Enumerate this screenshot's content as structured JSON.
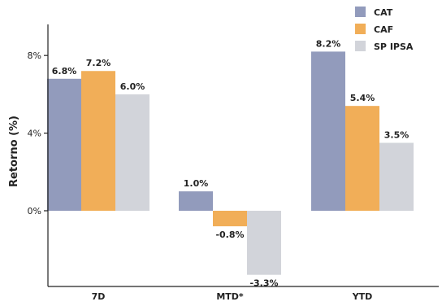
{
  "chart_data": {
    "type": "bar",
    "categories": [
      "7D",
      "MTD*",
      "YTD"
    ],
    "series": [
      {
        "name": "CAT",
        "values": [
          6.8,
          1.0,
          8.2
        ],
        "labels": [
          "6.8%",
          "1.0%",
          "8.2%"
        ],
        "color": "#929BBC"
      },
      {
        "name": "CAF",
        "values": [
          7.2,
          -0.8,
          5.4
        ],
        "labels": [
          "7.2%",
          "-0.8%",
          "5.4%"
        ],
        "color": "#F1AE58"
      },
      {
        "name": "SP IPSA",
        "values": [
          6.0,
          -3.3,
          3.5
        ],
        "labels": [
          "6.0%",
          "-3.3%",
          "3.5%"
        ],
        "color": "#D2D4DA"
      }
    ],
    "yticks": [
      {
        "value": 0,
        "label": "0%"
      },
      {
        "value": 4,
        "label": "4%"
      },
      {
        "value": 8,
        "label": "8%"
      }
    ],
    "ylabel": "Retorno (%)",
    "xlabel": "",
    "title": "",
    "ylim": [
      -3.9,
      9.6
    ],
    "grid": false,
    "legend_position": "top-right",
    "axis_color": "#222222"
  }
}
